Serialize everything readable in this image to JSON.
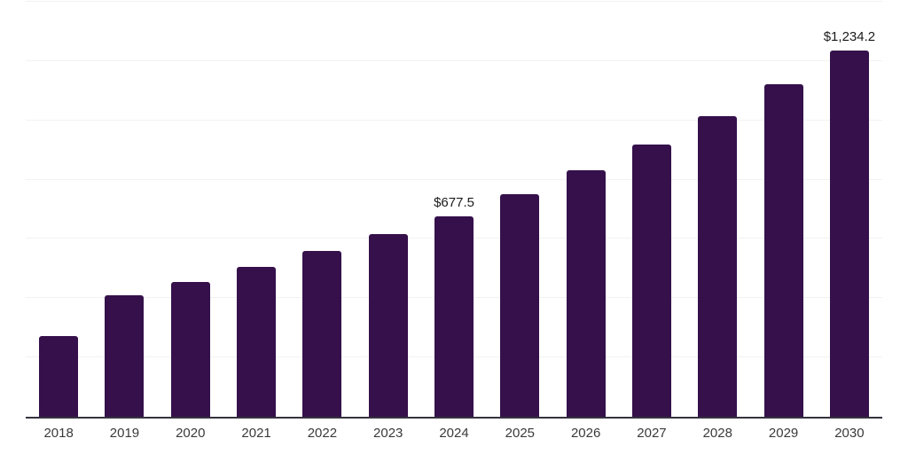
{
  "chart_data": {
    "type": "bar",
    "title": "",
    "xlabel": "",
    "ylabel": "",
    "categories": [
      "2018",
      "2019",
      "2020",
      "2021",
      "2022",
      "2023",
      "2024",
      "2025",
      "2026",
      "2027",
      "2028",
      "2029",
      "2030"
    ],
    "values": [
      272,
      411,
      454,
      505,
      560,
      615,
      677.5,
      752,
      831,
      917,
      1014,
      1121,
      1234.2
    ],
    "data_labels": [
      "",
      "",
      "",
      "",
      "",
      "",
      "$677.5",
      "",
      "",
      "",
      "",
      "",
      "$1,234.2"
    ],
    "ylim": [
      0,
      1400
    ],
    "gridline_interval": 200,
    "grid": "horizontal",
    "legend": "none",
    "y_axis_tick_labels": "none",
    "colors": {
      "bar": "#35104b",
      "gridline": "#f2f2f2",
      "axis_line": "#36323f",
      "tick_label": "#3a3a3a",
      "data_label": "#1b1b1b",
      "background": "#ffffff"
    }
  }
}
